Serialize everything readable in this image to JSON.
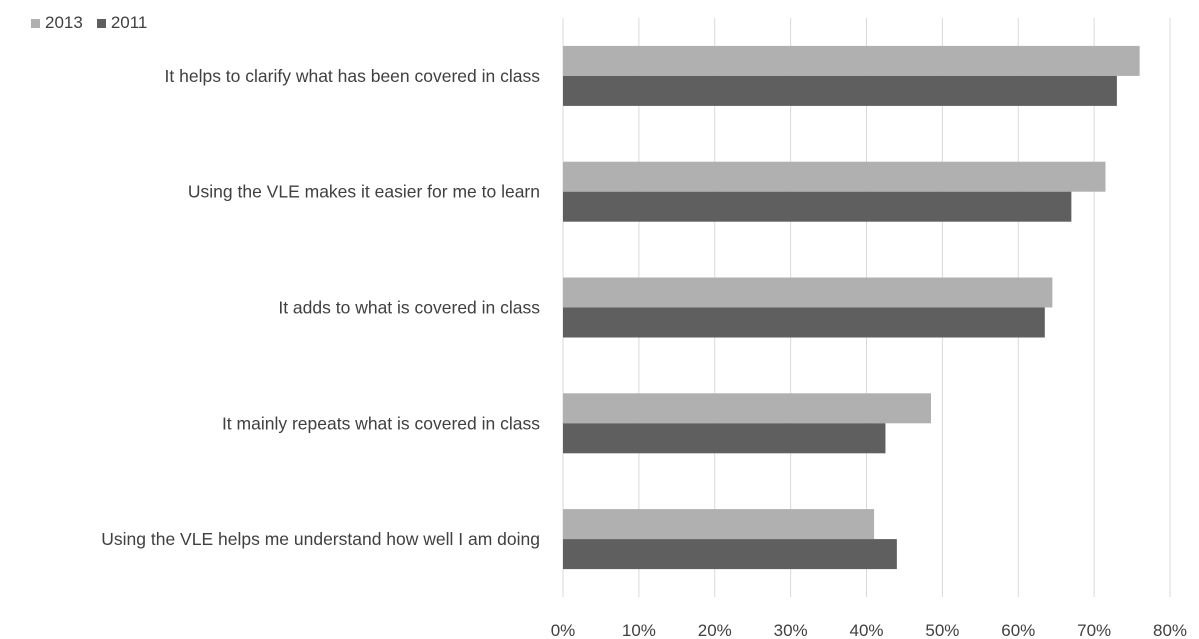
{
  "chart_data": {
    "type": "bar",
    "orientation": "horizontal",
    "categories": [
      "It helps to clarify what has been covered in class",
      "Using the VLE makes it easier for me to learn",
      "It adds to what is covered in class",
      "It mainly repeats what is covered in class",
      "Using the VLE helps me understand how well I am doing"
    ],
    "series": [
      {
        "name": "2013",
        "color": "#b0b0b0",
        "values": [
          76,
          71.5,
          64.5,
          48.5,
          41
        ]
      },
      {
        "name": "2011",
        "color": "#5f5f5f",
        "values": [
          73,
          67,
          63.5,
          42.5,
          44
        ]
      }
    ],
    "xlim": [
      0,
      80
    ],
    "x_ticks": [
      "0%",
      "10%",
      "20%",
      "30%",
      "40%",
      "50%",
      "60%",
      "70%",
      "80%"
    ],
    "grid": true,
    "legend_position": "top-left",
    "title": "",
    "xlabel": "",
    "ylabel": ""
  }
}
